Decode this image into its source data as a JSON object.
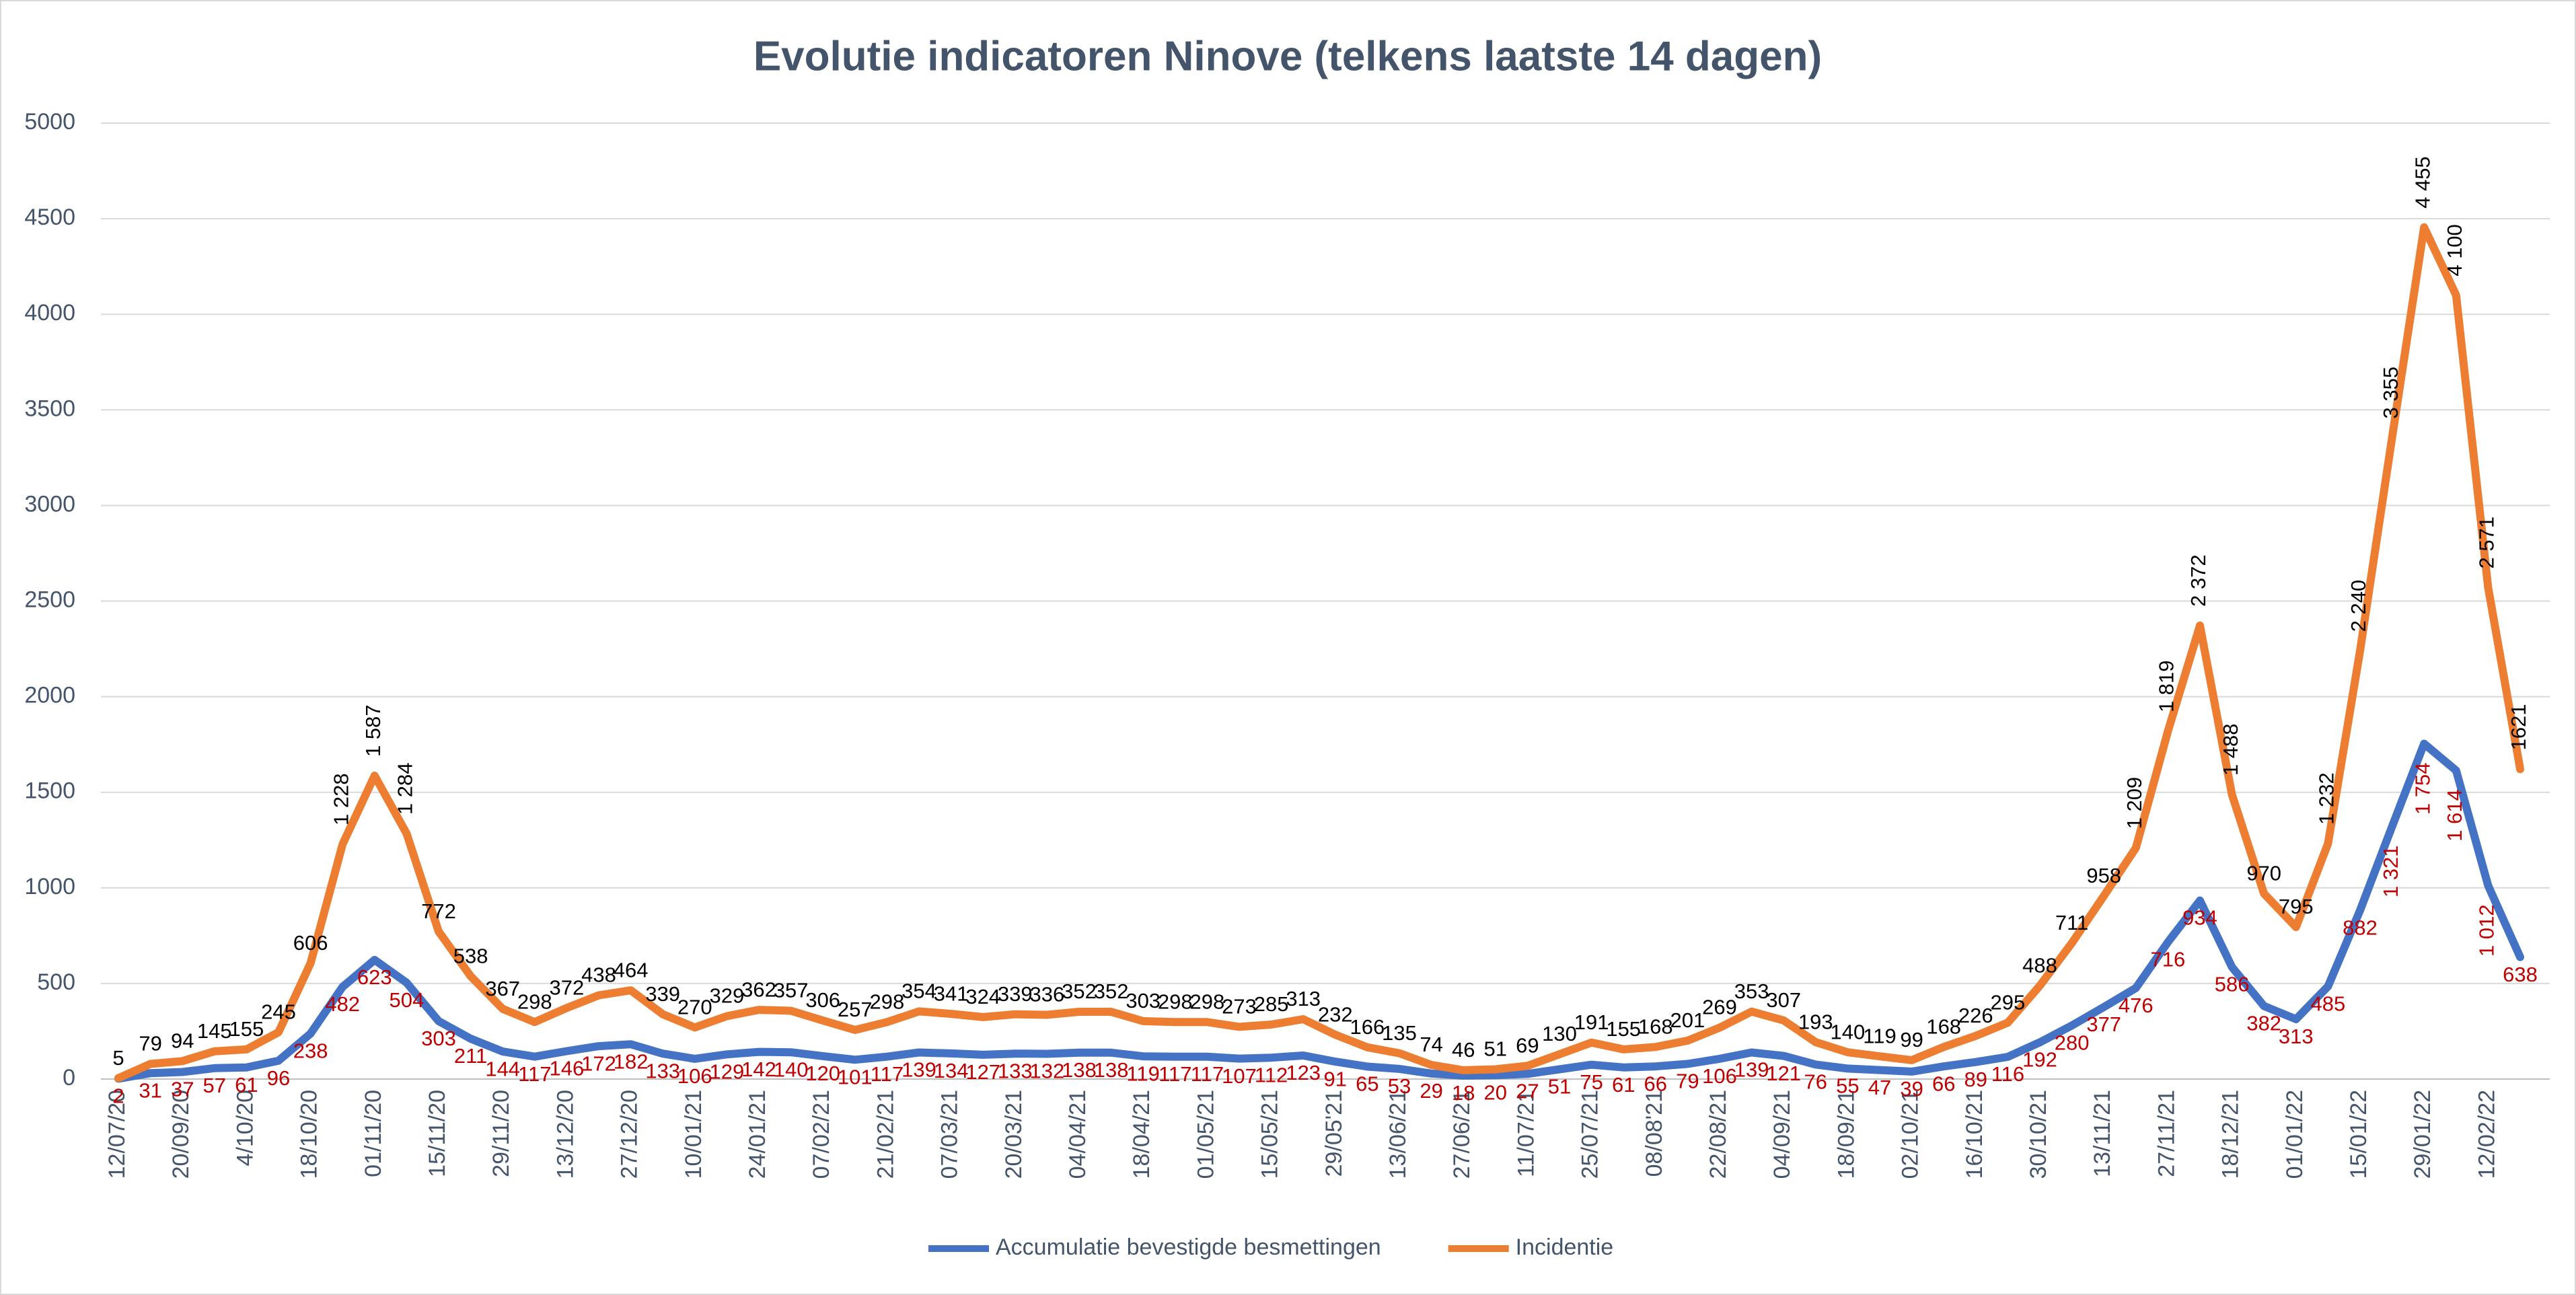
{
  "chart_data": {
    "type": "line",
    "title": "Evolutie indicatoren Ninove (telkens laatste 14 dagen)",
    "categories": [
      "12/07/20",
      null,
      "20/09/20",
      null,
      "4/10/20",
      null,
      "18/10/20",
      null,
      "01/11/20",
      null,
      "15/11/20",
      null,
      "29/11/20",
      null,
      "13/12/20",
      null,
      "27/12/20",
      null,
      "10/01/21",
      null,
      "24/01/21",
      null,
      "07/02/21",
      null,
      "21/02/21",
      null,
      "07/03/21",
      null,
      "20/03/21",
      null,
      "04/04/21",
      null,
      "18/04/21",
      null,
      "01/05/21",
      null,
      "15/05/21",
      null,
      "29/05'21",
      null,
      "13/06/21",
      null,
      "27/06/21",
      null,
      "11/07/21",
      null,
      "25/07/21",
      null,
      "08/08'21",
      null,
      "22/08/21",
      null,
      "04/09/21",
      null,
      "18/09/21",
      null,
      "02/10/21",
      null,
      "16/10/21",
      null,
      "30/10/21",
      null,
      "13/11/21",
      null,
      "27/11/21",
      null,
      "18/12/21",
      null,
      "01/01/22",
      null,
      "15/01/22",
      null,
      "29/01/22",
      null,
      "12/02/22",
      null
    ],
    "series": [
      {
        "name": "Accumulatie bevestigde besmettingen",
        "color": "#4472c4",
        "label_color": "#c00000",
        "values": [
          2,
          31,
          37,
          57,
          61,
          96,
          238,
          482,
          623,
          504,
          303,
          211,
          144,
          117,
          146,
          172,
          182,
          133,
          106,
          129,
          142,
          140,
          120,
          101,
          117,
          139,
          134,
          127,
          133,
          132,
          138,
          138,
          119,
          117,
          117,
          107,
          112,
          123,
          91,
          65,
          53,
          29,
          18,
          20,
          27,
          51,
          75,
          61,
          66,
          79,
          106,
          139,
          121,
          76,
          55,
          47,
          39,
          66,
          89,
          116,
          192,
          280,
          377,
          476,
          716,
          934,
          586,
          382,
          313,
          485,
          882,
          1321,
          1754,
          1614,
          1012,
          638
        ],
        "value_labels": [
          "2",
          "31",
          "37",
          "57",
          "61",
          "96",
          "238",
          "482",
          "623",
          "504",
          "303",
          "211",
          "144",
          "117",
          "146",
          "172",
          "182",
          "133",
          "106",
          "129",
          "142",
          "140",
          "120",
          "101",
          "117",
          "139",
          "134",
          "127",
          "133",
          "132",
          "138",
          "138",
          "119",
          "117",
          "117",
          "107",
          "112",
          "123",
          "91",
          "65",
          "53",
          "29",
          "18",
          "20",
          "27",
          "51",
          "75",
          "61",
          "66",
          "79",
          "106",
          "139",
          "121",
          "76",
          "55",
          "47",
          "39",
          "66",
          "89",
          "116",
          "192",
          "280",
          "377",
          "476",
          "716",
          "934",
          "586",
          "382",
          "313",
          "485",
          "882",
          "1 321",
          "1 754",
          "1 614",
          "1 012",
          "638"
        ]
      },
      {
        "name": "Incidentie",
        "color": "#ed7d31",
        "label_color": "#000000",
        "values": [
          5,
          79,
          94,
          145,
          155,
          245,
          606,
          1228,
          1587,
          1284,
          772,
          538,
          367,
          298,
          372,
          438,
          464,
          339,
          270,
          329,
          362,
          357,
          306,
          257,
          298,
          354,
          341,
          324,
          339,
          336,
          352,
          352,
          303,
          298,
          298,
          273,
          285,
          313,
          232,
          166,
          135,
          74,
          46,
          51,
          69,
          130,
          191,
          155,
          168,
          201,
          269,
          353,
          307,
          193,
          140,
          119,
          99,
          168,
          226,
          295,
          488,
          711,
          958,
          1209,
          1819,
          2372,
          1488,
          970,
          795,
          1232,
          2240,
          3355,
          4455,
          4100,
          2571,
          1621
        ],
        "value_labels": [
          "5",
          "79",
          "94",
          "145",
          "155",
          "245",
          "606",
          "1 228",
          "1 587",
          "1 284",
          "772",
          "538",
          "367",
          "298",
          "372",
          "438",
          "464",
          "339",
          "270",
          "329",
          "362",
          "357",
          "306",
          "257",
          "298",
          "354",
          "341",
          "324",
          "339",
          "336",
          "352",
          "352",
          "303",
          "298",
          "298",
          "273",
          "285",
          "313",
          "232",
          "166",
          "135",
          "74",
          "46",
          "51",
          "69",
          "130",
          "191",
          "155",
          "168",
          "201",
          "269",
          "353",
          "307",
          "193",
          "140",
          "119",
          "99",
          "168",
          "226",
          "295",
          "488",
          "711",
          "958",
          "1 209",
          "1 819",
          "2 372",
          "1 488",
          "970",
          "795",
          "1 232",
          "2 240",
          "3 355",
          "4 455",
          "4 100",
          "2 571",
          "1621"
        ]
      }
    ],
    "ylim": [
      0,
      5000
    ],
    "yticks": [
      0,
      500,
      1000,
      1500,
      2000,
      2500,
      3000,
      3500,
      4000,
      4500,
      5000
    ],
    "grid": true,
    "legend": "bottom"
  }
}
